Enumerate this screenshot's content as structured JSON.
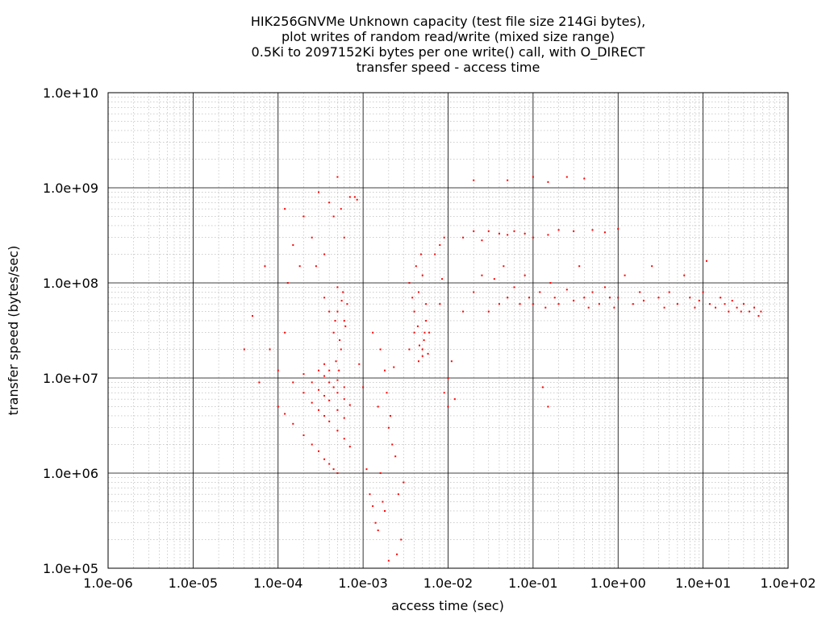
{
  "chart_data": {
    "type": "scatter",
    "title_lines": [
      "HIK256GNVMe Unknown capacity (test file size 214Gi bytes),",
      "plot writes of random read/write (mixed size range)",
      "0.5Ki to 2097152Ki bytes per one write() call, with O_DIRECT",
      "transfer speed - access time"
    ],
    "xlabel": "access time (sec)",
    "ylabel": "transfer speed (bytes/sec)",
    "x_scale": "log",
    "y_scale": "log",
    "xlim": [
      1e-06,
      100
    ],
    "ylim": [
      100000.0,
      10000000000.0
    ],
    "x_ticks": [
      "1.0e-06",
      "1.0e-05",
      "1.0e-04",
      "1.0e-03",
      "1.0e-02",
      "1.0e-01",
      "1.0e+00",
      "1.0e+01",
      "1.0e+02"
    ],
    "y_ticks": [
      "1.0e+05",
      "1.0e+06",
      "1.0e+07",
      "1.0e+08",
      "1.0e+09",
      "1.0e+10"
    ],
    "grid": true,
    "point_color": "#ff0000",
    "series": [
      {
        "points": [
          [
            0.0001,
            5000000.0
          ],
          [
            0.00012,
            4200000.0
          ],
          [
            0.00015,
            3300000.0
          ],
          [
            0.0002,
            2500000.0
          ],
          [
            0.00025,
            2000000.0
          ],
          [
            0.0003,
            1700000.0
          ],
          [
            0.00035,
            1400000.0
          ],
          [
            0.0004,
            1250000.0
          ],
          [
            0.00045,
            1100000.0
          ],
          [
            0.0005,
            1000000.0
          ],
          [
            0.00015,
            9000000.0
          ],
          [
            0.0002,
            7000000.0
          ],
          [
            0.00025,
            5500000.0
          ],
          [
            0.0003,
            4600000.0
          ],
          [
            0.00035,
            4000000.0
          ],
          [
            0.0004,
            3500000.0
          ],
          [
            0.0005,
            2800000.0
          ],
          [
            0.0006,
            2300000.0
          ],
          [
            0.0007,
            1900000.0
          ],
          [
            0.0002,
            11000000.0
          ],
          [
            0.00025,
            9000000.0
          ],
          [
            0.0003,
            7500000.0
          ],
          [
            0.00035,
            6500000.0
          ],
          [
            0.0004,
            5800000.0
          ],
          [
            0.0005,
            4600000.0
          ],
          [
            0.0006,
            3800000.0
          ],
          [
            0.0003,
            12000000.0
          ],
          [
            0.00035,
            10500000.0
          ],
          [
            0.0004,
            9000000.0
          ],
          [
            0.00045,
            8000000.0
          ],
          [
            0.0005,
            7000000.0
          ],
          [
            0.0006,
            6000000.0
          ],
          [
            0.0007,
            5200000.0
          ],
          [
            0.00035,
            14000000.0
          ],
          [
            0.0004,
            12000000.0
          ],
          [
            0.0005,
            9500000.0
          ],
          [
            0.0006,
            8000000.0
          ],
          [
            0.0001,
            12000000.0
          ],
          [
            0.00012,
            30000000.0
          ],
          [
            0.00013,
            100000000.0
          ],
          [
            0.00015,
            250000000.0
          ],
          [
            0.00012,
            600000000.0
          ],
          [
            0.00018,
            150000000.0
          ],
          [
            0.0002,
            500000000.0
          ],
          [
            0.00025,
            300000000.0
          ],
          [
            0.00028,
            150000000.0
          ],
          [
            0.0003,
            900000000.0
          ],
          [
            0.00035,
            200000000.0
          ],
          [
            0.0004,
            700000000.0
          ],
          [
            0.00045,
            500000000.0
          ],
          [
            0.0005,
            1300000000.0
          ],
          [
            0.00055,
            600000000.0
          ],
          [
            0.0006,
            300000000.0
          ],
          [
            0.0007,
            800000000.0
          ],
          [
            0.0008,
            800000000.0
          ],
          [
            0.00085,
            750000000.0
          ],
          [
            5e-05,
            45000000.0
          ],
          [
            6e-05,
            9000000.0
          ],
          [
            7e-05,
            150000000.0
          ],
          [
            8e-05,
            20000000.0
          ],
          [
            4e-05,
            20000000.0
          ],
          [
            0.00035,
            70000000.0
          ],
          [
            0.0004,
            50000000.0
          ],
          [
            0.00045,
            30000000.0
          ],
          [
            0.0005,
            90000000.0
          ],
          [
            0.00055,
            20000000.0
          ],
          [
            0.0006,
            40000000.0
          ],
          [
            0.00065,
            60000000.0
          ],
          [
            0.00048,
            15000000.0
          ],
          [
            0.00052,
            12000000.0
          ],
          [
            0.00058,
            80000000.0
          ],
          [
            0.0005,
            50000000.0
          ],
          [
            0.00053,
            25000000.0
          ],
          [
            0.00047,
            40000000.0
          ],
          [
            0.00062,
            35000000.0
          ],
          [
            0.00056,
            65000000.0
          ],
          [
            0.0009,
            14000000.0
          ],
          [
            0.001,
            8000000.0
          ],
          [
            0.0011,
            1100000.0
          ],
          [
            0.0012,
            600000.0
          ],
          [
            0.0013,
            450000.0
          ],
          [
            0.0014,
            300000.0
          ],
          [
            0.0015,
            250000.0
          ],
          [
            0.0016,
            1000000.0
          ],
          [
            0.0017,
            500000.0
          ],
          [
            0.0018,
            400000.0
          ],
          [
            0.002,
            3000000.0
          ],
          [
            0.0022,
            2000000.0
          ],
          [
            0.0024,
            1500000.0
          ],
          [
            0.0026,
            600000.0
          ],
          [
            0.0028,
            200000.0
          ],
          [
            0.0015,
            5000000.0
          ],
          [
            0.0018,
            12000000.0
          ],
          [
            0.0019,
            7000000.0
          ],
          [
            0.0021,
            4000000.0
          ],
          [
            0.0023,
            13000000.0
          ],
          [
            0.002,
            120000.0
          ],
          [
            0.0025,
            140000.0
          ],
          [
            0.003,
            800000.0
          ],
          [
            0.0013,
            30000000.0
          ],
          [
            0.0016,
            20000000.0
          ],
          [
            0.0035,
            20000000.0
          ],
          [
            0.004,
            30000000.0
          ],
          [
            0.0045,
            15000000.0
          ],
          [
            0.005,
            20000000.0
          ],
          [
            0.0055,
            40000000.0
          ],
          [
            0.004,
            50000000.0
          ],
          [
            0.0045,
            80000000.0
          ],
          [
            0.005,
            120000000.0
          ],
          [
            0.0055,
            60000000.0
          ],
          [
            0.006,
            30000000.0
          ],
          [
            0.0035,
            100000000.0
          ],
          [
            0.0042,
            150000000.0
          ],
          [
            0.0048,
            200000000.0
          ],
          [
            0.0052,
            25000000.0
          ],
          [
            0.0058,
            18000000.0
          ],
          [
            0.0038,
            70000000.0
          ],
          [
            0.0044,
            35000000.0
          ],
          [
            0.0046,
            22000000.0
          ],
          [
            0.005,
            17000000.0
          ],
          [
            0.0053,
            30000000.0
          ],
          [
            0.007,
            200000000.0
          ],
          [
            0.008,
            250000000.0
          ],
          [
            0.009,
            300000000.0
          ],
          [
            0.01,
            10000000.0
          ],
          [
            0.011,
            15000000.0
          ],
          [
            0.009,
            7000000.0
          ],
          [
            0.01,
            5000000.0
          ],
          [
            0.012,
            6000000.0
          ],
          [
            0.008,
            60000000.0
          ],
          [
            0.0085,
            110000000.0
          ],
          [
            0.015,
            300000000.0
          ],
          [
            0.02,
            350000000.0
          ],
          [
            0.025,
            280000000.0
          ],
          [
            0.03,
            350000000.0
          ],
          [
            0.04,
            330000000.0
          ],
          [
            0.05,
            320000000.0
          ],
          [
            0.06,
            350000000.0
          ],
          [
            0.08,
            330000000.0
          ],
          [
            0.1,
            300000000.0
          ],
          [
            0.15,
            320000000.0
          ],
          [
            0.2,
            360000000.0
          ],
          [
            0.3,
            350000000.0
          ],
          [
            0.5,
            360000000.0
          ],
          [
            0.7,
            340000000.0
          ],
          [
            1.0,
            370000000.0
          ],
          [
            0.02,
            1200000000.0
          ],
          [
            0.05,
            1200000000.0
          ],
          [
            0.1,
            1300000000.0
          ],
          [
            0.15,
            1150000000.0
          ],
          [
            0.25,
            1300000000.0
          ],
          [
            0.4,
            1250000000.0
          ],
          [
            0.15,
            5000000.0
          ],
          [
            0.13,
            8000000.0
          ],
          [
            0.015,
            50000000.0
          ],
          [
            0.02,
            80000000.0
          ],
          [
            0.025,
            120000000.0
          ],
          [
            0.03,
            50000000.0
          ],
          [
            0.035,
            110000000.0
          ],
          [
            0.04,
            60000000.0
          ],
          [
            0.045,
            150000000.0
          ],
          [
            0.05,
            70000000.0
          ],
          [
            0.06,
            90000000.0
          ],
          [
            0.07,
            60000000.0
          ],
          [
            0.08,
            120000000.0
          ],
          [
            0.09,
            70000000.0
          ],
          [
            0.1,
            60000000.0
          ],
          [
            0.12,
            80000000.0
          ],
          [
            0.14,
            55000000.0
          ],
          [
            0.16,
            100000000.0
          ],
          [
            0.18,
            70000000.0
          ],
          [
            0.2,
            60000000.0
          ],
          [
            0.25,
            85000000.0
          ],
          [
            0.3,
            65000000.0
          ],
          [
            0.35,
            150000000.0
          ],
          [
            0.4,
            70000000.0
          ],
          [
            0.45,
            55000000.0
          ],
          [
            0.5,
            80000000.0
          ],
          [
            0.6,
            60000000.0
          ],
          [
            0.7,
            90000000.0
          ],
          [
            0.8,
            70000000.0
          ],
          [
            0.9,
            55000000.0
          ],
          [
            1.0,
            70000000.0
          ],
          [
            1.2,
            120000000.0
          ],
          [
            1.5,
            60000000.0
          ],
          [
            1.8,
            80000000.0
          ],
          [
            2.0,
            65000000.0
          ],
          [
            2.5,
            150000000.0
          ],
          [
            3.0,
            70000000.0
          ],
          [
            3.5,
            55000000.0
          ],
          [
            4.0,
            80000000.0
          ],
          [
            5.0,
            60000000.0
          ],
          [
            6.0,
            120000000.0
          ],
          [
            7.0,
            70000000.0
          ],
          [
            8.0,
            55000000.0
          ],
          [
            9.0,
            65000000.0
          ],
          [
            10.0,
            80000000.0
          ],
          [
            11.0,
            170000000.0
          ],
          [
            12.0,
            60000000.0
          ],
          [
            14.0,
            55000000.0
          ],
          [
            16.0,
            70000000.0
          ],
          [
            18.0,
            60000000.0
          ],
          [
            20.0,
            50000000.0
          ],
          [
            22.0,
            65000000.0
          ],
          [
            25.0,
            55000000.0
          ],
          [
            28.0,
            50000000.0
          ],
          [
            30.0,
            60000000.0
          ],
          [
            35.0,
            50000000.0
          ],
          [
            40.0,
            55000000.0
          ],
          [
            45.0,
            45000000.0
          ],
          [
            48.0,
            50000000.0
          ]
        ]
      }
    ]
  }
}
